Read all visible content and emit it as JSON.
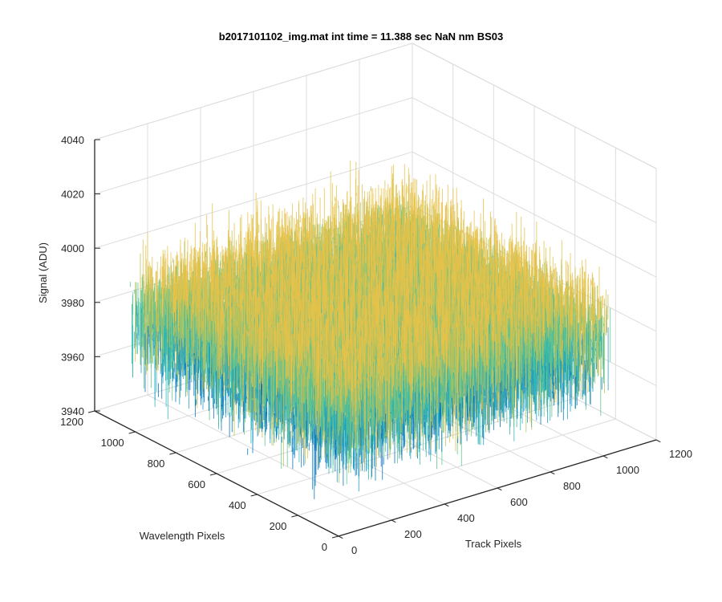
{
  "chart_data": {
    "type": "surface",
    "title": "b2017101102_img.mat int time = 11.388 sec  NaN nm BS03",
    "xlabel": "Track Pixels",
    "ylabel": "Wavelength Pixels",
    "zlabel": "Signal (ADU)",
    "xlim": [
      0,
      1200
    ],
    "ylim": [
      0,
      1200
    ],
    "zlim": [
      3940,
      4040
    ],
    "xticks": [
      0,
      200,
      400,
      600,
      800,
      1000,
      1200
    ],
    "yticks": [
      0,
      200,
      400,
      600,
      800,
      1000,
      1200
    ],
    "zticks": [
      3940,
      3960,
      3980,
      4000,
      4020,
      4040
    ],
    "data_extent": {
      "x": [
        0,
        1024
      ],
      "y": [
        0,
        1024
      ]
    },
    "signal_mean": 3982,
    "signal_noise_range": [
      3955,
      4020
    ],
    "grid": true,
    "colormap": [
      "#0072bd",
      "#1a9bc8",
      "#2fb7b0",
      "#5ec48f",
      "#b7c25a",
      "#e6c24a"
    ]
  }
}
